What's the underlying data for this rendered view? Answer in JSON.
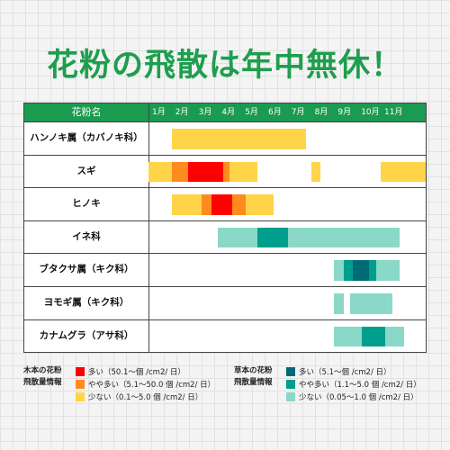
{
  "title": "花粉の飛散は年中無休！",
  "colors": {
    "tree_high": "#ff0000",
    "tree_mid": "#ff8a1e",
    "tree_low": "#ffd448",
    "grass_high": "#006a78",
    "grass_mid": "#009e8c",
    "grass_low": "#8ad9c8",
    "header_bg": "#1a9b50"
  },
  "chart_data": {
    "type": "table",
    "header_label": "花粉名",
    "months": [
      "1月",
      "2月",
      "3月",
      "4月",
      "5月",
      "6月",
      "7月",
      "8月",
      "9月",
      "10月",
      "11月"
    ],
    "rows": [
      {
        "name": "ハンノキ属（カバノキ科）",
        "periods": [
          [
            1.0,
            6.8,
            "tree_low"
          ]
        ]
      },
      {
        "name": "スギ",
        "periods": [
          [
            0.0,
            1.0,
            "tree_low"
          ],
          [
            1.0,
            1.7,
            "tree_mid"
          ],
          [
            1.7,
            3.2,
            "tree_high"
          ],
          [
            3.2,
            3.5,
            "tree_mid"
          ],
          [
            3.5,
            4.7,
            "tree_low"
          ],
          [
            7.0,
            7.4,
            "tree_low"
          ],
          [
            10.0,
            12.0,
            "tree_low"
          ]
        ]
      },
      {
        "name": "ヒノキ",
        "periods": [
          [
            1.0,
            2.3,
            "tree_low"
          ],
          [
            2.3,
            2.7,
            "tree_mid"
          ],
          [
            2.7,
            3.6,
            "tree_high"
          ],
          [
            3.6,
            4.2,
            "tree_mid"
          ],
          [
            4.2,
            5.4,
            "tree_low"
          ]
        ]
      },
      {
        "name": "イネ科",
        "periods": [
          [
            3.0,
            4.7,
            "grass_low"
          ],
          [
            4.7,
            6.0,
            "grass_mid"
          ],
          [
            6.0,
            10.8,
            "grass_low"
          ]
        ]
      },
      {
        "name": "ブタクサ属（キク科）",
        "periods": [
          [
            8.0,
            8.4,
            "grass_low"
          ],
          [
            8.4,
            8.8,
            "grass_mid"
          ],
          [
            8.8,
            9.5,
            "grass_high"
          ],
          [
            9.5,
            9.8,
            "grass_mid"
          ],
          [
            9.8,
            10.8,
            "grass_low"
          ]
        ]
      },
      {
        "name": "ヨモギ属（キク科）",
        "periods": [
          [
            8.0,
            8.4,
            "grass_low"
          ],
          [
            8.7,
            10.5,
            "grass_low"
          ]
        ]
      },
      {
        "name": "カナムグラ（アサ科）",
        "periods": [
          [
            8.0,
            9.2,
            "grass_low"
          ],
          [
            9.2,
            10.2,
            "grass_mid"
          ],
          [
            10.2,
            11.0,
            "grass_low"
          ]
        ]
      }
    ]
  },
  "legend": {
    "tree": {
      "title_line1": "木本の花粉",
      "title_line2": "飛散量情報",
      "items": [
        {
          "color": "tree_high",
          "label": "多い（50.1〜個 /cm2/ 日）"
        },
        {
          "color": "tree_mid",
          "label": "やや多い（5.1〜50.0 個 /cm2/ 日）"
        },
        {
          "color": "tree_low",
          "label": "少ない（0.1〜5.0 個 /cm2/ 日）"
        }
      ]
    },
    "grass": {
      "title_line1": "草本の花粉",
      "title_line2": "飛散量情報",
      "items": [
        {
          "color": "grass_high",
          "label": "多い（5.1〜個 /cm2/ 日）"
        },
        {
          "color": "grass_mid",
          "label": "やや多い（1.1〜5.0 個 /cm2/ 日）"
        },
        {
          "color": "grass_low",
          "label": "少ない（0.05〜1.0 個 /cm2/ 日）"
        }
      ]
    }
  }
}
